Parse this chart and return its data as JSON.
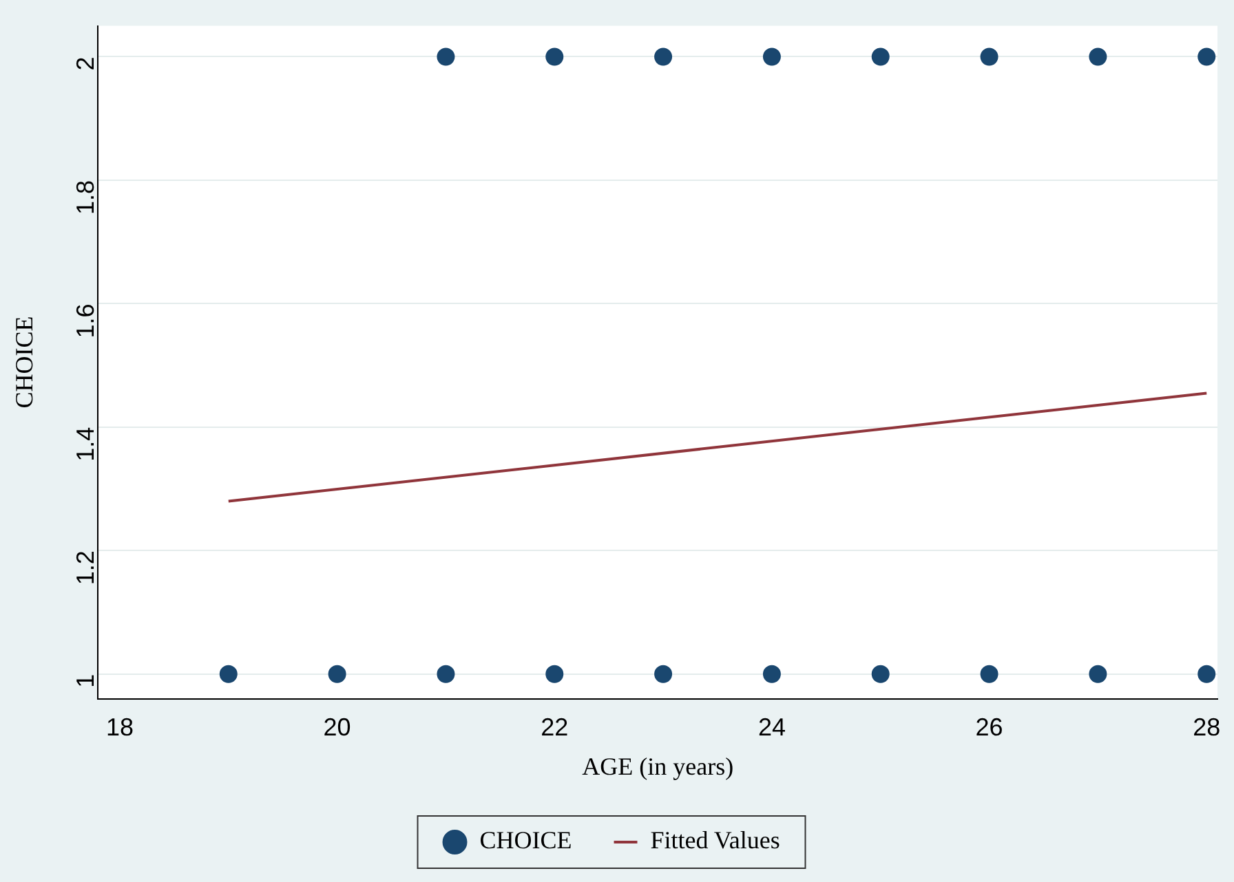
{
  "chart_data": {
    "type": "scatter",
    "xlabel": "AGE (in years)",
    "ylabel": "CHOICE",
    "xlim": [
      17.8,
      28.1
    ],
    "xticks": [
      18,
      20,
      22,
      24,
      26,
      28
    ],
    "ylim": [
      0.96,
      2.05
    ],
    "yticks": [
      1,
      1.2,
      1.4,
      1.6,
      1.8,
      2
    ],
    "grid": "y",
    "legend": "bottom",
    "series": [
      {
        "name": "CHOICE",
        "type": "scatter",
        "marker": "circle",
        "color": "#1a476f",
        "x": [
          19,
          20,
          21,
          22,
          23,
          24,
          25,
          26,
          27,
          28,
          21,
          22,
          23,
          24,
          25,
          26,
          27,
          28
        ],
        "values": [
          1,
          1,
          1,
          1,
          1,
          1,
          1,
          1,
          1,
          1,
          2,
          2,
          2,
          2,
          2,
          2,
          2,
          2
        ]
      },
      {
        "name": "Fitted Values",
        "type": "line",
        "marker": "none",
        "line_style": "solid",
        "color": "#90353b",
        "x": [
          19,
          28
        ],
        "values": [
          1.28,
          1.455
        ]
      }
    ]
  }
}
